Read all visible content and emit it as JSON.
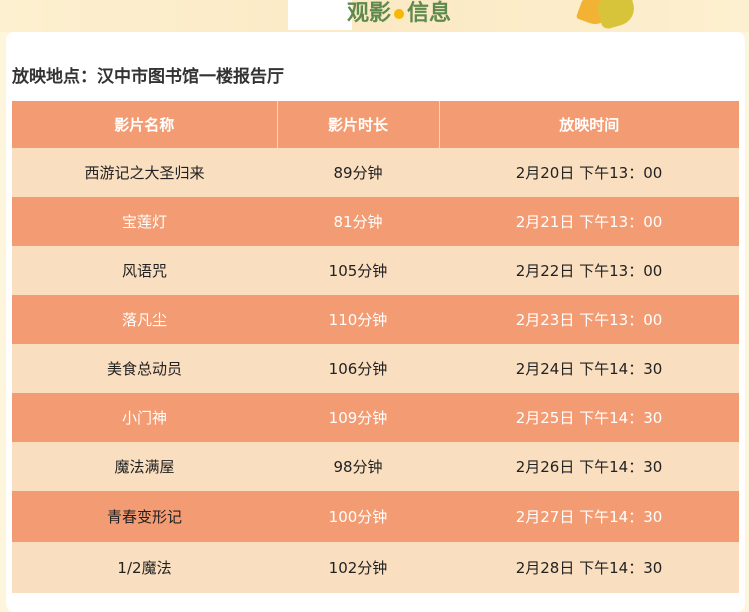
{
  "header": {
    "title_left": "观影",
    "title_right": "信息",
    "accent": "#5e8a4e"
  },
  "location": "放映地点：汉中市图书馆一楼报告厅",
  "table": {
    "columns": [
      "影片名称",
      "影片时长",
      "放映时间"
    ],
    "rows": [
      [
        "西游记之大圣归来",
        "89分钟",
        "2月20日 下午13：00"
      ],
      [
        "宝莲灯",
        "81分钟",
        "2月21日 下午13：00"
      ],
      [
        "风语咒",
        "105分钟",
        "2月22日 下午13：00"
      ],
      [
        "落凡尘",
        "110分钟",
        "2月23日 下午13：00"
      ],
      [
        "美食总动员",
        "106分钟",
        "2月24日 下午14：30"
      ],
      [
        "小门神",
        "109分钟",
        "2月25日 下午14：30"
      ],
      [
        "魔法满屋",
        "98分钟",
        "2月26日 下午14：30"
      ],
      [
        "青春变形记",
        "100分钟",
        "2月27日 下午14：30"
      ],
      [
        "1/2魔法",
        "102分钟",
        "2月28日 下午14：30"
      ]
    ]
  },
  "colors": {
    "header_bg": "#f39b72",
    "row_light": "#f9dec0",
    "row_dark": "#f39b72"
  }
}
